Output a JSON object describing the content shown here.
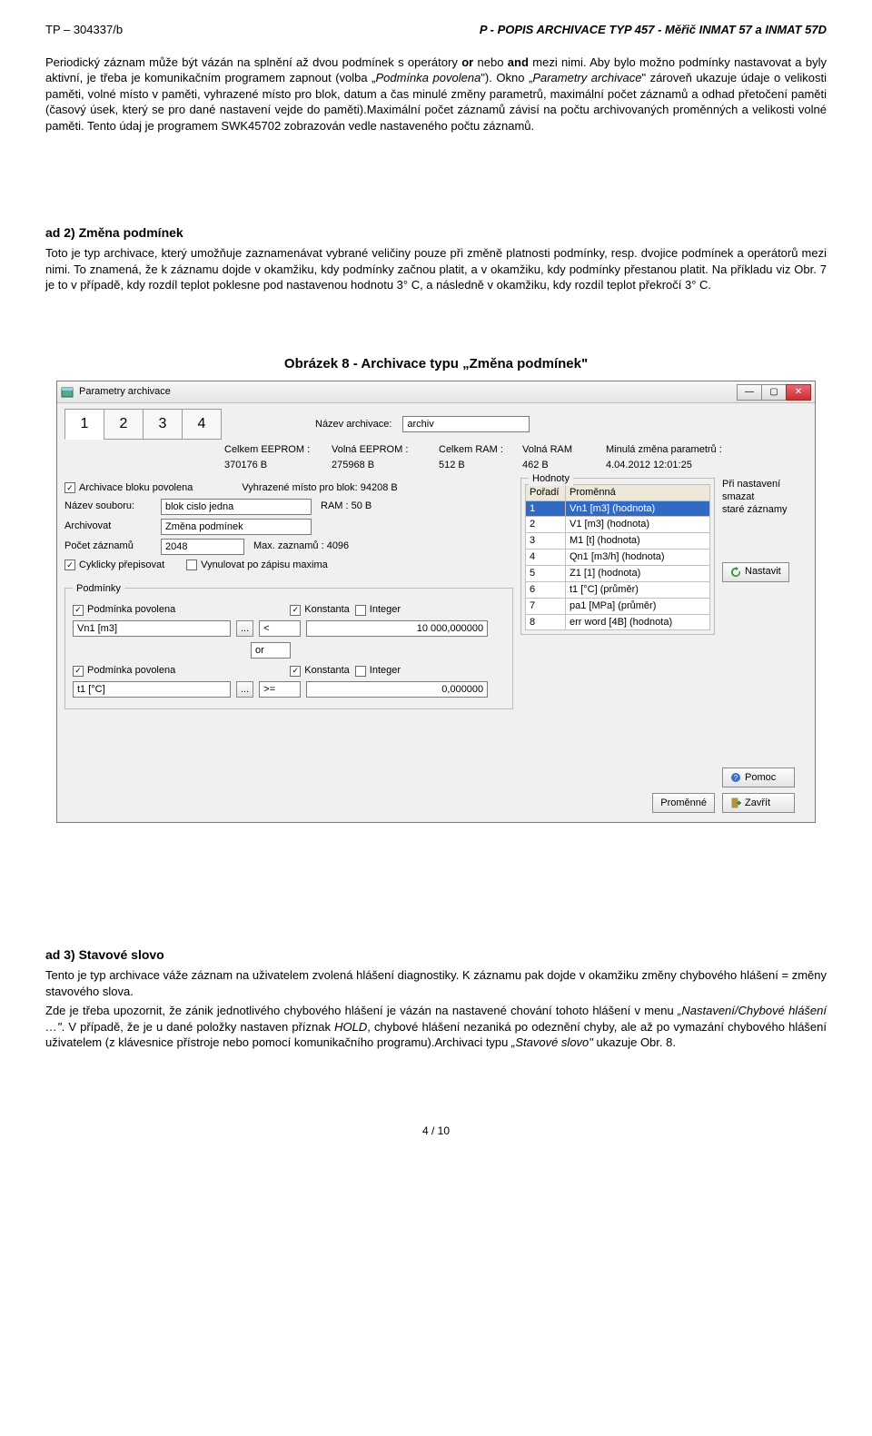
{
  "header": {
    "left": "TP – 304337/b",
    "right": "P - POPIS ARCHIVACE   TYP 457 - Měřič INMAT 57 a INMAT 57D"
  },
  "para1_pre": "Periodický záznam může být vázán na splnění až dvou podmínek s operátory ",
  "para1_b1": "or",
  "para1_mid1": " nebo ",
  "para1_b2": "and",
  "para1_mid2": " mezi nimi. Aby bylo možno podmínky nastavovat a byly aktivní, je třeba je komunikačním programem zapnout (volba „",
  "para1_i1": "Podmínka povolena",
  "para1_post1": "\"). Okno „",
  "para1_i2": "Parametry archivace",
  "para1_post2": "\" zároveň ukazuje údaje o velikosti paměti, volné místo v paměti, vyhrazené místo pro blok, datum a čas minulé změny parametrů, maximální počet záznamů a odhad přetočení paměti (časový úsek, který se pro dané nastavení vejde do paměti).Maximální počet záznamů závisí na počtu archivovaných proměnných a velikosti volné paměti. Tento údaj je programem SWK45702 zobrazován vedle nastaveného počtu záznamů.",
  "sec2_title": "ad 2) Změna podmínek",
  "sec2_body": "Toto je typ archivace, který umožňuje zaznamenávat vybrané veličiny pouze při změně platnosti podmínky, resp. dvojice podmínek a operátorů mezi nimi. To znamená, že k záznamu dojde v okamžiku, kdy podmínky začnou platit, a v okamžiku, kdy podmínky přestanou platit. Na příkladu viz Obr. 7 je to v případě, kdy rozdíl teplot poklesne pod nastavenou hodnotu 3° C, a následně v okamžiku, kdy rozdíl teplot překročí 3° C.",
  "caption": "Obrázek 8 - Archivace typu „Změna podmínek\"",
  "win": {
    "title": "Parametry archivace",
    "name_lbl": "Název archivace:",
    "name_val": "archiv",
    "tabs": [
      "1",
      "2",
      "3",
      "4"
    ],
    "stats": [
      {
        "label": "Celkem EEPROM :",
        "value": "370176 B"
      },
      {
        "label": "Volná EEPROM :",
        "value": "275968 B"
      },
      {
        "label": "Celkem RAM :",
        "value": "512 B"
      },
      {
        "label": "Volná RAM",
        "value": "462 B"
      },
      {
        "label": "Minulá změna parametrů :",
        "value": "4.04.2012   12:01:25"
      }
    ],
    "chk_archivace": "Archivace bloku povolena",
    "reserved": "Vyhrazené místo pro blok: 94208 B",
    "nazev_s_lbl": "Název souboru:",
    "nazev_s_val": "blok cislo jedna",
    "ram_lbl": "RAM : 50 B",
    "arch_lbl": "Archivovat",
    "arch_val": "Změna podmínek",
    "pocet_lbl": "Počet záznamů",
    "pocet_val": "2048",
    "max_lbl": "Max. zaznamů : 4096",
    "chk_cykl": "Cyklicky přepisovat",
    "chk_vyn": "Vynulovat po zápisu maxima",
    "hodnoty_legend": "Hodnoty",
    "tbl_h1": "Pořadí",
    "tbl_h2": "Proměnná",
    "rows": [
      {
        "n": "1",
        "v": "Vn1 [m3] (hodnota)",
        "sel": true
      },
      {
        "n": "2",
        "v": "V1 [m3] (hodnota)"
      },
      {
        "n": "3",
        "v": "M1 [t] (hodnota)"
      },
      {
        "n": "4",
        "v": "Qn1 [m3/h] (hodnota)"
      },
      {
        "n": "5",
        "v": "Z1 [1] (hodnota)"
      },
      {
        "n": "6",
        "v": "t1 [°C] (průměr)"
      },
      {
        "n": "7",
        "v": "pa1 [MPa] (průměr)"
      },
      {
        "n": "8",
        "v": "err word [4B] (hodnota)"
      }
    ],
    "side_text1": "Při nastavení",
    "side_text2": "smazat",
    "side_text3": "staré záznamy",
    "nastavit": "Nastavit",
    "podminky_legend": "Podmínky",
    "chk_pod": "Podmínka povolena",
    "chk_konst": "Konstanta",
    "chk_int": "Integer",
    "c1_var": "Vn1 [m3]",
    "c1_dots": "...",
    "c1_op": "<",
    "c1_val": "10 000,000000",
    "or_val": "or",
    "c2_var": "t1 [°C]",
    "c2_dots": "...",
    "c2_op": ">=",
    "c2_val": "0,000000",
    "pomoc": "Pomoc",
    "zavrit": "Zavřít",
    "promenne": "Proměnné"
  },
  "sec3_title": "ad 3) Stavové slovo",
  "sec3_p1": "Tento je typ archivace váže záznam na uživatelem zvolená hlášení diagnostiky. K záznamu pak dojde v okamžiku změny chybového hlášení = změny stavového slova.",
  "sec3_p2_pre": "Zde je třeba upozornit, že zánik jednotlivého chybového hlášení je vázán na nastavené chování tohoto hlášení v menu ",
  "sec3_i1": "„Nastavení/Chybové hlášení …\"",
  "sec3_p2_mid": ". V případě, že je u dané položky nastaven příznak ",
  "sec3_i2": "HOLD",
  "sec3_p2_post": ", chybové hlášení nezaniká po odeznění chyby, ale až po vymazání chybového hlášení uživatelem (z klávesnice přístroje nebo pomocí komunikačního programu).Archivaci typu ",
  "sec3_i3": "„Stavové slovo\"",
  "sec3_p2_end": " ukazuje Obr. 8.",
  "page": "4 / 10"
}
